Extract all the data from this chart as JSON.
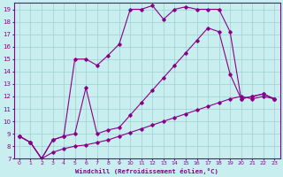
{
  "xlabel": "Windchill (Refroidissement éolien,°C)",
  "xlim": [
    -0.5,
    23.5
  ],
  "ylim": [
    7,
    19.5
  ],
  "yticks": [
    7,
    8,
    9,
    10,
    11,
    12,
    13,
    14,
    15,
    16,
    17,
    18,
    19
  ],
  "xticks": [
    0,
    1,
    2,
    3,
    4,
    5,
    6,
    7,
    8,
    9,
    10,
    11,
    12,
    13,
    14,
    15,
    16,
    17,
    18,
    19,
    20,
    21,
    22,
    23
  ],
  "bg_color": "#c8eef0",
  "line_color": "#880088",
  "grid_color": "#9ecfcf",
  "series": [
    {
      "x": [
        0,
        1,
        2,
        3,
        4,
        5,
        6,
        7,
        8,
        9,
        10,
        11,
        12,
        13,
        14,
        15,
        16,
        17,
        18,
        19,
        20,
        21,
        22,
        23
      ],
      "y": [
        8.8,
        8.3,
        7.0,
        8.5,
        8.8,
        15.0,
        15.0,
        14.5,
        15.3,
        16.2,
        19.0,
        19.0,
        19.3,
        18.2,
        19.0,
        19.2,
        19.0,
        19.0,
        19.0,
        17.2,
        11.8,
        12.0,
        12.2,
        11.8
      ]
    },
    {
      "x": [
        0,
        1,
        2,
        3,
        4,
        5,
        6,
        7,
        8,
        9,
        10,
        11,
        12,
        13,
        14,
        15,
        16,
        17,
        18,
        19,
        20,
        21,
        22,
        23
      ],
      "y": [
        8.8,
        8.3,
        7.0,
        8.5,
        8.8,
        9.0,
        12.7,
        9.0,
        9.3,
        9.5,
        10.5,
        11.5,
        12.5,
        13.5,
        14.5,
        15.5,
        16.5,
        17.5,
        17.2,
        13.8,
        11.8,
        12.0,
        12.2,
        11.8
      ]
    },
    {
      "x": [
        0,
        1,
        2,
        3,
        4,
        5,
        6,
        7,
        8,
        9,
        10,
        11,
        12,
        13,
        14,
        15,
        16,
        17,
        18,
        19,
        20,
        21,
        22,
        23
      ],
      "y": [
        8.8,
        8.3,
        7.0,
        7.5,
        7.8,
        8.0,
        8.1,
        8.3,
        8.5,
        8.8,
        9.1,
        9.4,
        9.7,
        10.0,
        10.3,
        10.6,
        10.9,
        11.2,
        11.5,
        11.8,
        12.0,
        11.8,
        12.0,
        11.8
      ]
    }
  ]
}
